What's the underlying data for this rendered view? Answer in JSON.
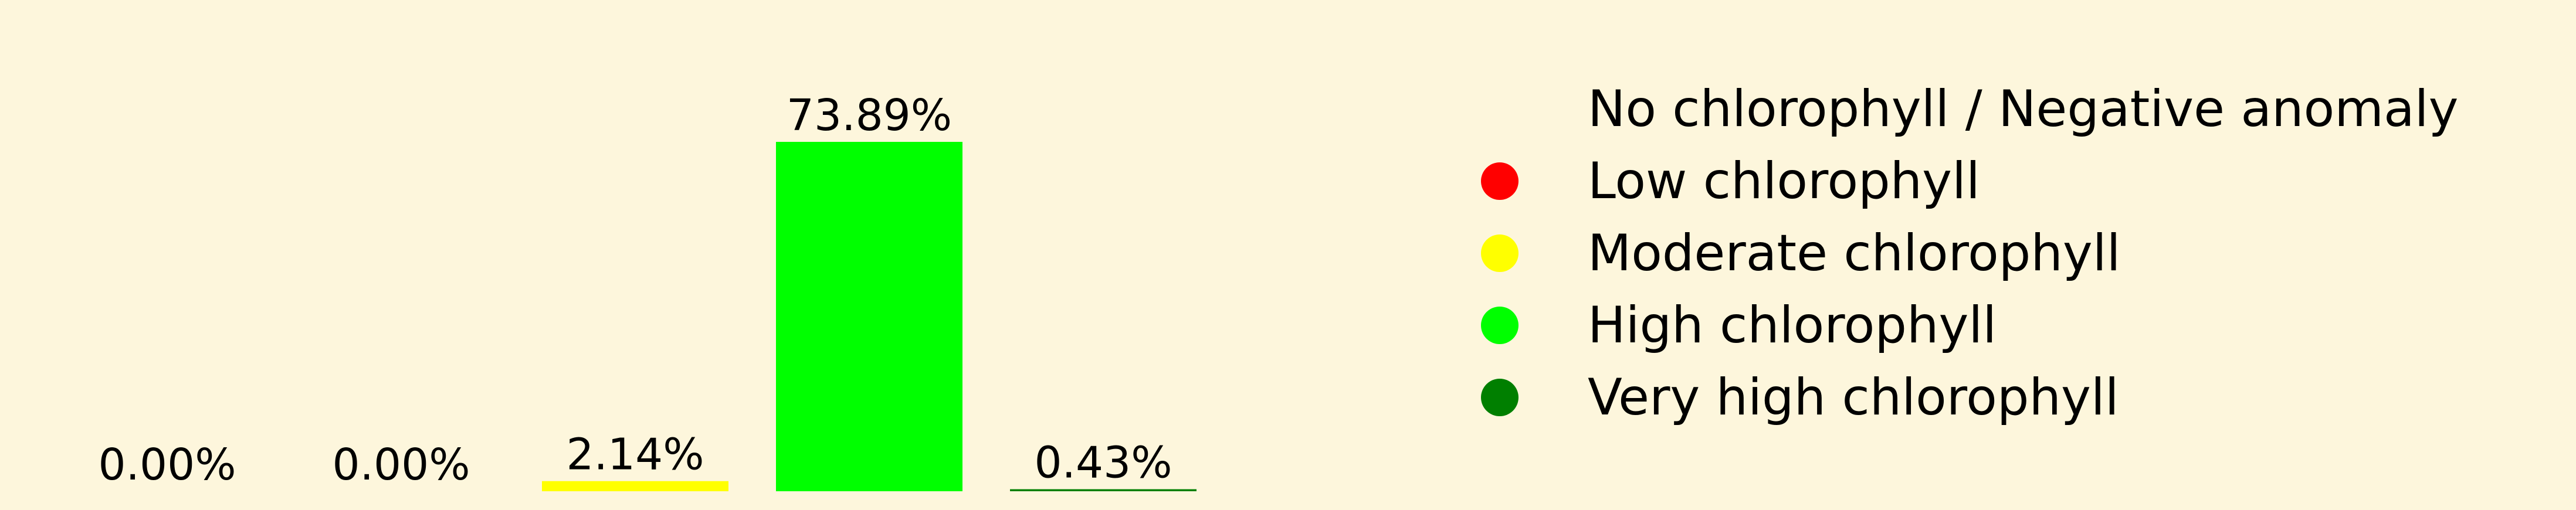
{
  "chart_data": {
    "type": "bar",
    "categories": [
      "No chlorophyll / Negative anomaly",
      "Low chlorophyll",
      "Moderate chlorophyll",
      "High chlorophyll",
      "Very high chlorophyll"
    ],
    "values": [
      0.0,
      0.0,
      2.14,
      73.89,
      0.43
    ],
    "data_labels": [
      "0.00%",
      "0.00%",
      "2.14%",
      "73.89%",
      "0.43%"
    ],
    "colors": [
      "#fdf6dc",
      "#ff0000",
      "#ffff00",
      "#00ff00",
      "#007f00"
    ],
    "ylim": [
      0,
      73.89
    ],
    "grid": false,
    "legend_position": "right"
  },
  "legend": {
    "items": [
      {
        "label": "No chlorophyll / Negative anomaly",
        "color": "#fdf6dc"
      },
      {
        "label": "Low chlorophyll",
        "color": "#ff0000"
      },
      {
        "label": "Moderate chlorophyll",
        "color": "#ffff00"
      },
      {
        "label": "High chlorophyll",
        "color": "#00ff00"
      },
      {
        "label": "Very high chlorophyll",
        "color": "#007f00"
      }
    ]
  }
}
